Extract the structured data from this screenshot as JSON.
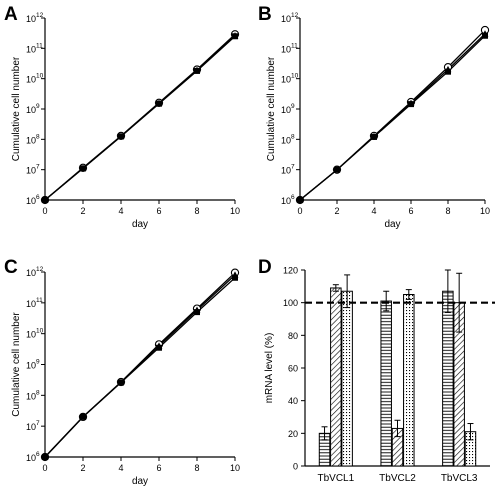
{
  "chart_data": [
    {
      "panel": "A",
      "type": "line",
      "xlabel": "day",
      "ylabel": "Cumulative cell number",
      "xlim": [
        0,
        10
      ],
      "xticks": [
        "0",
        "2",
        "4",
        "6",
        "8",
        "10"
      ],
      "ylim": [
        1000000.0,
        1000000000000.0
      ],
      "yscale": "log",
      "ytick_base": "10",
      "ytick_exponents": [
        "6",
        "7",
        "8",
        "9",
        "10",
        "11",
        "12"
      ],
      "x": [
        0,
        2,
        4,
        6,
        8,
        10
      ],
      "series": [
        {
          "marker": "open-circle",
          "values": [
            1000000.0,
            11500000.0,
            130000000.0,
            1600000000.0,
            20000000000.0,
            290000000000.0
          ]
        },
        {
          "marker": "filled-square",
          "values": [
            1000000.0,
            11000000.0,
            125000000.0,
            1500000000.0,
            18000000000.0,
            250000000000.0
          ]
        },
        {
          "marker": "filled-triangle",
          "values": [
            1000000.0,
            11000000.0,
            125000000.0,
            1550000000.0,
            19000000000.0,
            260000000000.0
          ]
        }
      ]
    },
    {
      "panel": "B",
      "type": "line",
      "xlabel": "day",
      "ylabel": "Cumulative cell number",
      "xlim": [
        0,
        10
      ],
      "xticks": [
        "0",
        "2",
        "4",
        "6",
        "8",
        "10"
      ],
      "ylim": [
        1000000.0,
        1000000000000.0
      ],
      "yscale": "log",
      "ytick_base": "10",
      "ytick_exponents": [
        "6",
        "7",
        "8",
        "9",
        "10",
        "11",
        "12"
      ],
      "x": [
        0,
        2,
        4,
        6,
        8,
        10
      ],
      "series": [
        {
          "marker": "open-circle",
          "values": [
            1000000.0,
            10000000.0,
            130000000.0,
            1700000000.0,
            24000000000.0,
            400000000000.0
          ]
        },
        {
          "marker": "filled-square",
          "values": [
            1000000.0,
            10000000.0,
            120000000.0,
            1450000000.0,
            17000000000.0,
            260000000000.0
          ]
        },
        {
          "marker": "filled-triangle",
          "values": [
            1000000.0,
            10000000.0,
            125000000.0,
            1550000000.0,
            20000000000.0,
            300000000000.0
          ]
        }
      ]
    },
    {
      "panel": "C",
      "type": "line",
      "xlabel": "day",
      "ylabel": "Cumulative cell number",
      "xlim": [
        0,
        10
      ],
      "xticks": [
        "0",
        "2",
        "4",
        "6",
        "8",
        "10"
      ],
      "ylim": [
        1000000.0,
        1000000000000.0
      ],
      "yscale": "log",
      "ytick_base": "10",
      "ytick_exponents": [
        "6",
        "7",
        "8",
        "9",
        "10",
        "11",
        "12"
      ],
      "x": [
        0,
        2,
        4,
        6,
        8,
        10
      ],
      "series": [
        {
          "marker": "open-circle",
          "values": [
            1000000.0,
            20000000.0,
            270000000.0,
            4500000000.0,
            65000000000.0,
            950000000000.0
          ]
        },
        {
          "marker": "filled-square",
          "values": [
            1000000.0,
            20000000.0,
            260000000.0,
            3500000000.0,
            50000000000.0,
            650000000000.0
          ]
        },
        {
          "marker": "filled-triangle",
          "values": [
            1000000.0,
            20000000.0,
            265000000.0,
            4000000000.0,
            58000000000.0,
            800000000000.0
          ]
        }
      ]
    },
    {
      "panel": "D",
      "type": "bar",
      "ylabel": "mRNA level (%)",
      "ylim": [
        0,
        120
      ],
      "yticks": [
        "0",
        "20",
        "40",
        "60",
        "80",
        "100",
        "120"
      ],
      "reference_line": 100,
      "categories": [
        "TbVCL1",
        "TbVCL2",
        "TbVCL3"
      ],
      "series": [
        {
          "pattern": "horizontal-lines",
          "values": [
            20,
            101,
            107
          ],
          "errors": [
            4,
            6,
            13
          ]
        },
        {
          "pattern": "diagonal-lines",
          "values": [
            109,
            23,
            100
          ],
          "errors": [
            2,
            5,
            18
          ]
        },
        {
          "pattern": "dotted",
          "values": [
            107,
            105,
            21
          ],
          "errors": [
            10,
            3,
            5
          ]
        }
      ]
    }
  ]
}
